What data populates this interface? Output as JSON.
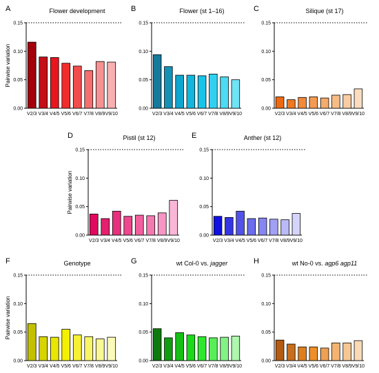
{
  "threshold": 0.15,
  "chart_data": [
    {
      "panel": "A",
      "type": "bar",
      "title": "Flower development",
      "ylabel": "Pairwise variation",
      "ylim": [
        0,
        0.15
      ],
      "yticks": [
        "0.00",
        "0.05",
        "0.10",
        "0.15"
      ],
      "categories": [
        "V2/3",
        "V3/4",
        "V4/5",
        "V5/6",
        "V6/7",
        "V7/8",
        "V8/9",
        "V9/10"
      ],
      "values": [
        0.116,
        0.09,
        0.089,
        0.079,
        0.074,
        0.066,
        0.082,
        0.081
      ],
      "colors": [
        "#a3000b",
        "#c40f18",
        "#e8161e",
        "#f22b2b",
        "#f34c4c",
        "#f56f6f",
        "#f79192",
        "#f9b0b0"
      ]
    },
    {
      "panel": "B",
      "type": "bar",
      "title": "Flower (st 1–16)",
      "ylabel": "",
      "ylim": [
        0,
        0.15
      ],
      "yticks": [
        "0.00",
        "0.05",
        "0.10",
        "0.15"
      ],
      "categories": [
        "V2/3",
        "V3/4",
        "V4/5",
        "V5/6",
        "V6/7",
        "V7/8",
        "V8/9",
        "V9/10"
      ],
      "values": [
        0.094,
        0.073,
        0.058,
        0.058,
        0.057,
        0.06,
        0.055,
        0.05
      ],
      "colors": [
        "#167a9c",
        "#1491b7",
        "#0ea5cf",
        "#12b7de",
        "#18c4e9",
        "#32d0f0",
        "#4cdaf4",
        "#71e3f7"
      ]
    },
    {
      "panel": "C",
      "type": "bar",
      "title": "Silique (st 17)",
      "ylabel": "",
      "ylim": [
        0,
        0.15
      ],
      "yticks": [
        "0.00",
        "0.05",
        "0.10",
        "0.15"
      ],
      "categories": [
        "V2/3",
        "V3/4",
        "V4/5",
        "V5/6",
        "V6/7",
        "V7/8",
        "V8/9",
        "V9/10"
      ],
      "values": [
        0.02,
        0.015,
        0.019,
        0.02,
        0.018,
        0.023,
        0.024,
        0.034
      ],
      "colors": [
        "#ee6a12",
        "#f07a24",
        "#f28a3a",
        "#f39b52",
        "#f5ab6b",
        "#f7bc86",
        "#f9cca2",
        "#fbdcbf"
      ]
    },
    {
      "panel": "D",
      "type": "bar",
      "title": "Pistil (st 12)",
      "ylabel": "Pairwise variation",
      "ylim": [
        0,
        0.15
      ],
      "yticks": [
        "0.00",
        "0.05",
        "0.10",
        "0.15"
      ],
      "categories": [
        "V2/3",
        "V3/4",
        "V4/5",
        "V5/6",
        "V6/7",
        "V7/8",
        "V8/9",
        "V9/10"
      ],
      "values": [
        0.037,
        0.029,
        0.042,
        0.033,
        0.035,
        0.034,
        0.039,
        0.061
      ],
      "colors": [
        "#e0095f",
        "#e51f6f",
        "#ea2f7e",
        "#ee478e",
        "#f25f9f",
        "#f479b0",
        "#f795c4",
        "#fab6d7"
      ]
    },
    {
      "panel": "E",
      "type": "bar",
      "title": "Anther (st 12)",
      "ylabel": "",
      "ylim": [
        0,
        0.15
      ],
      "yticks": [
        "0.00",
        "0.05",
        "0.10",
        "0.15"
      ],
      "categories": [
        "V2/3",
        "V3/4",
        "V4/5",
        "V5/6",
        "V6/7",
        "V7/8",
        "V8/9",
        "V9/10"
      ],
      "values": [
        0.033,
        0.031,
        0.042,
        0.029,
        0.03,
        0.028,
        0.027,
        0.038
      ],
      "colors": [
        "#1010e0",
        "#3535e6",
        "#5252ea",
        "#6c6cef",
        "#8686f2",
        "#a0a0f5",
        "#babaf8",
        "#d5d5fb"
      ]
    },
    {
      "panel": "F",
      "type": "bar",
      "title": "Genotype",
      "ylabel": "Pairwise variation",
      "ylim": [
        0,
        0.15
      ],
      "yticks": [
        "0.00",
        "0.05",
        "0.10",
        "0.15"
      ],
      "categories": [
        "V2/3",
        "V3/4",
        "V4/5",
        "V5/6",
        "V6/7",
        "V7/8",
        "V8/9",
        "V9/10"
      ],
      "values": [
        0.065,
        0.042,
        0.041,
        0.055,
        0.045,
        0.042,
        0.038,
        0.041
      ],
      "colors": [
        "#c4c000",
        "#d8d400",
        "#e9e600",
        "#f3f000",
        "#f6f233",
        "#f8f566",
        "#faf892",
        "#fcfab8"
      ]
    },
    {
      "panel": "G",
      "type": "bar",
      "title": "wt Col-0 vs. jagger",
      "title_plain": "wt Col-0 vs. ",
      "title_italic": "jagger",
      "ylabel": "",
      "ylim": [
        0,
        0.15
      ],
      "yticks": [
        "0.00",
        "0.05",
        "0.10",
        "0.15"
      ],
      "categories": [
        "V2/3",
        "V3/4",
        "V4/5",
        "V5/6",
        "V6/7",
        "V7/8",
        "V8/9",
        "V9/10"
      ],
      "values": [
        0.056,
        0.04,
        0.049,
        0.045,
        0.042,
        0.04,
        0.041,
        0.043
      ],
      "colors": [
        "#0c7a0c",
        "#109e10",
        "#14c014",
        "#1ada1a",
        "#2ee82e",
        "#58ee58",
        "#82f382",
        "#aef7ae"
      ]
    },
    {
      "panel": "H",
      "type": "bar",
      "title": "wt No-0 vs. agp6 agp11",
      "title_plain": "wt No-0 vs. ",
      "title_italic": "agp6 agp11",
      "ylabel": "",
      "ylim": [
        0,
        0.15
      ],
      "yticks": [
        "0.00",
        "0.05",
        "0.10",
        "0.15"
      ],
      "categories": [
        "V2/3",
        "V3/4",
        "V4/5",
        "V5/6",
        "V6/7",
        "V7/8",
        "V8/9",
        "V9/10"
      ],
      "values": [
        0.036,
        0.029,
        0.024,
        0.024,
        0.022,
        0.031,
        0.031,
        0.035
      ],
      "colors": [
        "#b45a12",
        "#c86e1c",
        "#de7f1e",
        "#ee8f2a",
        "#f0a050",
        "#f3b471",
        "#f6c793",
        "#f9dab6"
      ]
    }
  ]
}
